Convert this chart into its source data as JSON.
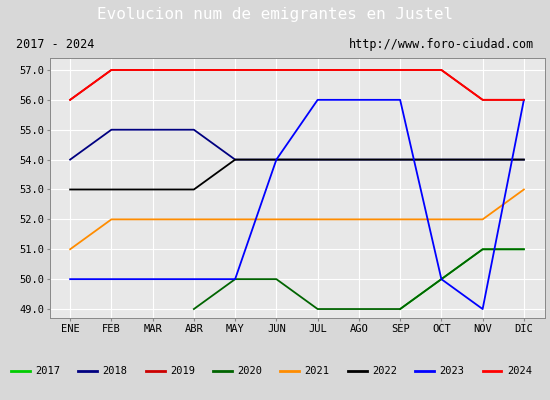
{
  "title": "Evolucion num de emigrantes en Justel",
  "subtitle_left": "2017 - 2024",
  "subtitle_right": "http://www.foro-ciudad.com",
  "months": [
    "ENE",
    "FEB",
    "MAR",
    "ABR",
    "MAY",
    "JUN",
    "JUL",
    "AGO",
    "SEP",
    "OCT",
    "NOV",
    "DIC"
  ],
  "month_indices": [
    1,
    2,
    3,
    4,
    5,
    6,
    7,
    8,
    9,
    10,
    11,
    12
  ],
  "ylim": [
    48.7,
    57.4
  ],
  "yticks": [
    49.0,
    50.0,
    51.0,
    52.0,
    53.0,
    54.0,
    55.0,
    56.0,
    57.0
  ],
  "series": {
    "2017": {
      "color": "#00cc00",
      "data": [
        [
          9,
          49.0
        ],
        [
          10,
          50.0
        ],
        [
          11,
          51.0
        ],
        [
          12,
          51.0
        ]
      ]
    },
    "2018": {
      "color": "#000080",
      "data": [
        [
          1,
          54.0
        ],
        [
          2,
          55.0
        ],
        [
          3,
          55.0
        ],
        [
          4,
          55.0
        ],
        [
          5,
          54.0
        ],
        [
          6,
          54.0
        ],
        [
          7,
          54.0
        ],
        [
          8,
          54.0
        ],
        [
          9,
          54.0
        ],
        [
          10,
          54.0
        ],
        [
          11,
          54.0
        ],
        [
          12,
          54.0
        ]
      ]
    },
    "2019": {
      "color": "#cc0000",
      "data": [
        [
          1,
          56.0
        ],
        [
          2,
          57.0
        ],
        [
          3,
          57.0
        ],
        [
          4,
          57.0
        ],
        [
          5,
          57.0
        ],
        [
          6,
          57.0
        ],
        [
          7,
          57.0
        ],
        [
          8,
          57.0
        ],
        [
          9,
          57.0
        ],
        [
          10,
          57.0
        ],
        [
          11,
          56.0
        ],
        [
          12,
          56.0
        ]
      ]
    },
    "2020": {
      "color": "#006400",
      "data": [
        [
          4,
          49.0
        ],
        [
          5,
          50.0
        ],
        [
          6,
          50.0
        ],
        [
          7,
          49.0
        ],
        [
          8,
          49.0
        ],
        [
          9,
          49.0
        ],
        [
          10,
          50.0
        ],
        [
          11,
          51.0
        ],
        [
          12,
          51.0
        ]
      ]
    },
    "2021": {
      "color": "#ff8c00",
      "data": [
        [
          1,
          51.0
        ],
        [
          2,
          52.0
        ],
        [
          3,
          52.0
        ],
        [
          4,
          52.0
        ],
        [
          5,
          52.0
        ],
        [
          6,
          52.0
        ],
        [
          7,
          52.0
        ],
        [
          8,
          52.0
        ],
        [
          9,
          52.0
        ],
        [
          10,
          52.0
        ],
        [
          11,
          52.0
        ],
        [
          12,
          53.0
        ]
      ]
    },
    "2022": {
      "color": "#000000",
      "data": [
        [
          1,
          53.0
        ],
        [
          2,
          53.0
        ],
        [
          3,
          53.0
        ],
        [
          4,
          53.0
        ],
        [
          5,
          54.0
        ],
        [
          6,
          54.0
        ],
        [
          7,
          54.0
        ],
        [
          8,
          54.0
        ],
        [
          9,
          54.0
        ],
        [
          10,
          54.0
        ],
        [
          11,
          54.0
        ],
        [
          12,
          54.0
        ]
      ]
    },
    "2023": {
      "color": "#0000ff",
      "data": [
        [
          1,
          50.0
        ],
        [
          2,
          50.0
        ],
        [
          3,
          50.0
        ],
        [
          4,
          50.0
        ],
        [
          5,
          50.0
        ],
        [
          6,
          54.0
        ],
        [
          7,
          56.0
        ],
        [
          8,
          56.0
        ],
        [
          9,
          56.0
        ],
        [
          10,
          50.0
        ],
        [
          11,
          49.0
        ],
        [
          12,
          56.0
        ]
      ]
    },
    "2024": {
      "color": "#ff0000",
      "data": [
        [
          1,
          56.0
        ],
        [
          2,
          57.0
        ],
        [
          3,
          57.0
        ],
        [
          4,
          57.0
        ],
        [
          5,
          57.0
        ],
        [
          6,
          57.0
        ],
        [
          7,
          57.0
        ],
        [
          8,
          57.0
        ],
        [
          9,
          57.0
        ],
        [
          10,
          57.0
        ],
        [
          11,
          56.0
        ],
        [
          12,
          56.0
        ]
      ]
    }
  },
  "bg_color": "#d8d8d8",
  "plot_bg_color": "#e8e8e8",
  "title_bg_color": "#5b8dd9",
  "title_text_color": "#ffffff",
  "grid_color": "#ffffff",
  "legend_bg_color": "#ffffff",
  "subtitle_bg_color": "#ffffff",
  "legend_items": [
    [
      "2017",
      "#00cc00"
    ],
    [
      "2018",
      "#000080"
    ],
    [
      "2019",
      "#cc0000"
    ],
    [
      "2020",
      "#006400"
    ],
    [
      "2021",
      "#ff8c00"
    ],
    [
      "2022",
      "#000000"
    ],
    [
      "2023",
      "#0000ff"
    ],
    [
      "2024",
      "#ff0000"
    ]
  ]
}
